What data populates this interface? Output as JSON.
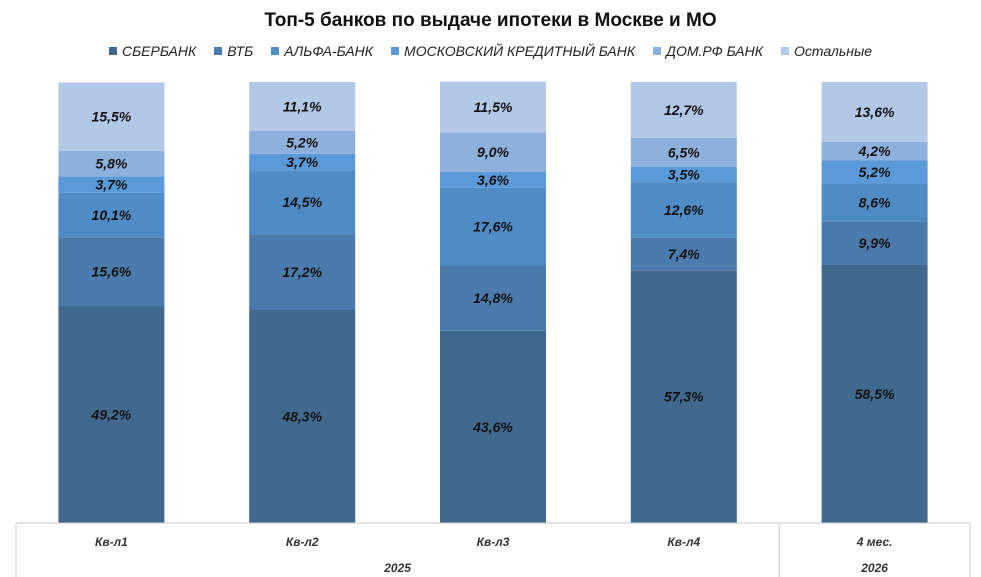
{
  "chart_data": {
    "type": "bar",
    "stacked": true,
    "percent_stacked": true,
    "title": "Топ-5 банков по выдаче ипотеки в Москве и МО",
    "categories": [
      "Кв-л1",
      "Кв-л2",
      "Кв-л3",
      "Кв-л4",
      "4 мес."
    ],
    "groups": [
      {
        "label": "2025",
        "categories": [
          "Кв-л1",
          "Кв-л2",
          "Кв-л3",
          "Кв-л4"
        ]
      },
      {
        "label": "2026",
        "categories": [
          "4 мес."
        ]
      }
    ],
    "series": [
      {
        "name": "СБЕРБАНК",
        "color": "#41698f",
        "values": [
          49.2,
          48.3,
          43.6,
          57.3,
          58.5
        ],
        "labels": [
          "49,2%",
          "48,3%",
          "43,6%",
          "57,3%",
          "58,5%"
        ]
      },
      {
        "name": "ВТБ",
        "color": "#4a7bac",
        "values": [
          15.6,
          17.2,
          14.8,
          7.4,
          9.9
        ],
        "labels": [
          "15,6%",
          "17,2%",
          "14,8%",
          "7,4%",
          "9,9%"
        ]
      },
      {
        "name": "АЛЬФА-БАНК",
        "color": "#4f8bc4",
        "values": [
          10.1,
          14.5,
          17.6,
          12.6,
          8.6
        ],
        "labels": [
          "10,1%",
          "14,5%",
          "17,6%",
          "12,6%",
          "8,6%"
        ]
      },
      {
        "name": "МОСКОВСКИЙ КРЕДИТНЫЙ БАНК",
        "color": "#5a9ad8",
        "values": [
          3.7,
          3.7,
          3.6,
          3.5,
          5.2
        ],
        "labels": [
          "3,7%",
          "3,7%",
          "3,6%",
          "3,5%",
          "5,2%"
        ]
      },
      {
        "name": "ДОМ.РФ БАНК",
        "color": "#8eb0dc",
        "values": [
          5.8,
          5.2,
          9.0,
          6.5,
          4.2
        ],
        "labels": [
          "5,8%",
          "5,2%",
          "9,0%",
          "6,5%",
          "4,2%"
        ]
      },
      {
        "name": "Остальные",
        "color": "#b2c8e6",
        "values": [
          15.5,
          11.1,
          11.5,
          12.7,
          13.6
        ],
        "labels": [
          "15,5%",
          "11,1%",
          "11,5%",
          "12,7%",
          "13,6%"
        ]
      }
    ],
    "ylim": [
      0,
      100
    ],
    "grid": false,
    "legend": "top"
  }
}
